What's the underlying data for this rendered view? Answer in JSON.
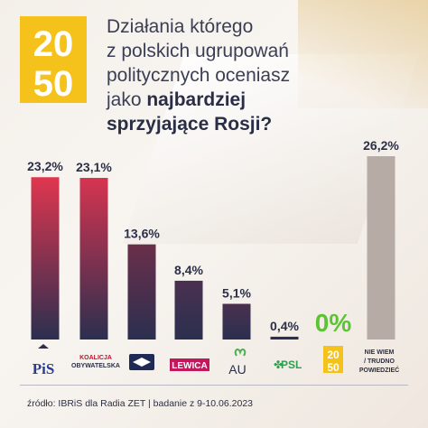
{
  "question": {
    "line1": "Działania którego",
    "line2": "z polskich ugrupowań",
    "line3": "politycznych oceniasz",
    "line4_prefix": "jako ",
    "line4_bold": "najbardziej",
    "line5_bold": "sprzyjające Rosji?"
  },
  "logo": {
    "top": "20",
    "bottom": "50"
  },
  "footer": "źródło: IBRiS dla Radia ZET | badanie z 9-10.06.2023",
  "chart_data": {
    "type": "bar",
    "categories": [
      "PiS",
      "Koalicja Obywatelska",
      "Konfederacja",
      "Lewica",
      "AU",
      "PSL",
      "Polska 2050",
      "NIE WIEM / TRUDNO POWIEDZIEĆ"
    ],
    "values": [
      23.2,
      23.1,
      13.6,
      8.4,
      5.1,
      0.4,
      0,
      26.2
    ],
    "value_labels": [
      "23,2%",
      "23,1%",
      "13,6%",
      "8,4%",
      "5,1%",
      "0,4%",
      "0%",
      "26,2%"
    ],
    "ylim": [
      0,
      26.2
    ],
    "grid": false,
    "legend": "none"
  },
  "party_labels": {
    "pis": "PiS",
    "ko_line1": "KOALICJA",
    "ko_line2": "OBYWATELSKA",
    "lewica": "LEWICA",
    "au": "AU",
    "psl": "PSL",
    "p2050_top": "20",
    "p2050_bottom": "50",
    "dk_line1": "NIE WIEM",
    "dk_line2": "/ TRUDNO",
    "dk_line3": "POWIEDZIEĆ"
  },
  "colors": {
    "bar_top_pis": "#e0364f",
    "bar_top_ko": "#d63450",
    "bar_bottom": "#2b2f4f",
    "bar_dk": "#b7aba6",
    "zero_highlight": "#5cc431",
    "logo_yellow": "#f5c21b"
  }
}
